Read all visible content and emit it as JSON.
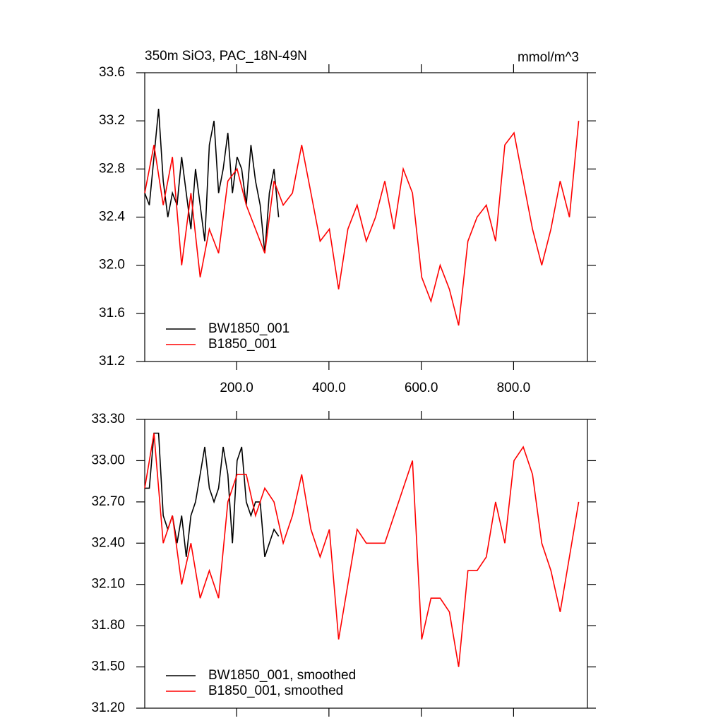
{
  "chart_data": [
    {
      "type": "line",
      "title": "350m SiO3, PAC_18N-49N",
      "units": "mmol/m^3",
      "xlim": [
        1,
        960
      ],
      "ylim": [
        31.2,
        33.6
      ],
      "xticks": [
        {
          "value": 200,
          "label": "200.0"
        },
        {
          "value": 400,
          "label": "400.0"
        },
        {
          "value": 600,
          "label": "600.0"
        },
        {
          "value": 800,
          "label": "800.0"
        }
      ],
      "yticks": [
        31.2,
        31.6,
        {
          "value": 32,
          "label": "32.0"
        },
        32.4,
        32.8,
        33.2,
        33.6
      ],
      "legend": "lower left",
      "series": [
        {
          "name": "BW1850_001",
          "color": "#000000",
          "x": [
            1,
            11,
            21,
            31,
            41,
            51,
            61,
            71,
            81,
            91,
            101,
            111,
            121,
            131,
            141,
            151,
            161,
            171,
            181,
            191,
            201,
            211,
            221,
            231,
            241,
            251,
            261,
            271,
            281,
            291
          ],
          "values": [
            32.6,
            32.5,
            32.9,
            33.3,
            32.7,
            32.4,
            32.6,
            32.5,
            32.9,
            32.6,
            32.3,
            32.8,
            32.5,
            32.2,
            33.0,
            33.2,
            32.6,
            32.8,
            33.1,
            32.6,
            32.9,
            32.8,
            32.5,
            33.0,
            32.7,
            32.5,
            32.1,
            32.6,
            32.8,
            32.4
          ]
        },
        {
          "name": "B1850_001",
          "color": "#ff0000",
          "x": [
            1,
            21,
            41,
            61,
            81,
            101,
            121,
            141,
            161,
            181,
            201,
            221,
            241,
            261,
            281,
            301,
            321,
            341,
            361,
            381,
            401,
            421,
            441,
            461,
            481,
            501,
            521,
            541,
            561,
            581,
            601,
            621,
            641,
            661,
            681,
            701,
            721,
            741,
            761,
            781,
            801,
            821,
            841,
            861,
            881,
            901,
            921,
            941
          ],
          "values": [
            32.6,
            33.0,
            32.5,
            32.9,
            32.0,
            32.6,
            31.9,
            32.3,
            32.1,
            32.7,
            32.8,
            32.5,
            32.3,
            32.1,
            32.7,
            32.5,
            32.6,
            33.0,
            32.6,
            32.2,
            32.3,
            31.8,
            32.3,
            32.5,
            32.2,
            32.4,
            32.7,
            32.3,
            32.8,
            32.6,
            31.9,
            31.7,
            32.0,
            31.8,
            31.5,
            32.2,
            32.4,
            32.5,
            32.2,
            33.0,
            33.1,
            32.7,
            32.3,
            32.0,
            32.3,
            32.7,
            32.4,
            33.2
          ]
        }
      ]
    },
    {
      "type": "line",
      "xlim": [
        1,
        960
      ],
      "ylim": [
        31.2,
        33.3
      ],
      "xticks": [
        200,
        400,
        600,
        800
      ],
      "yticks": [
        {
          "value": 31.2,
          "label": "31.20"
        },
        {
          "value": 31.5,
          "label": "31.50"
        },
        {
          "value": 31.8,
          "label": "31.80"
        },
        {
          "value": 32.1,
          "label": "32.10"
        },
        {
          "value": 32.4,
          "label": "32.40"
        },
        {
          "value": 32.7,
          "label": "32.70"
        },
        {
          "value": 33,
          "label": "33.00"
        },
        {
          "value": 33.3,
          "label": "33.30"
        }
      ],
      "legend": "lower left",
      "series": [
        {
          "name": "BW1850_001, smoothed",
          "color": "#000000",
          "x": [
            1,
            11,
            21,
            31,
            41,
            51,
            61,
            71,
            81,
            91,
            101,
            111,
            121,
            131,
            141,
            151,
            161,
            171,
            181,
            191,
            201,
            211,
            221,
            231,
            241,
            251,
            261,
            271,
            281,
            291
          ],
          "values": [
            32.8,
            32.8,
            33.2,
            33.2,
            32.6,
            32.5,
            32.6,
            32.4,
            32.6,
            32.3,
            32.6,
            32.7,
            32.9,
            33.1,
            32.8,
            32.7,
            32.8,
            33.1,
            32.9,
            32.4,
            33.0,
            33.1,
            32.7,
            32.6,
            32.7,
            32.7,
            32.3,
            32.4,
            32.5,
            32.45
          ]
        },
        {
          "name": "B1850_001, smoothed",
          "color": "#ff0000",
          "x": [
            1,
            21,
            41,
            61,
            81,
            101,
            121,
            141,
            161,
            181,
            201,
            221,
            241,
            261,
            281,
            301,
            321,
            341,
            361,
            381,
            401,
            421,
            441,
            461,
            481,
            501,
            521,
            541,
            561,
            581,
            601,
            621,
            641,
            661,
            681,
            701,
            721,
            741,
            761,
            781,
            801,
            821,
            841,
            861,
            881,
            901,
            921,
            941
          ],
          "values": [
            32.8,
            33.2,
            32.4,
            32.6,
            32.1,
            32.4,
            32.0,
            32.2,
            32.0,
            32.7,
            32.9,
            32.9,
            32.6,
            32.8,
            32.7,
            32.4,
            32.6,
            32.9,
            32.5,
            32.3,
            32.5,
            31.7,
            32.1,
            32.5,
            32.4,
            32.4,
            32.4,
            32.6,
            32.8,
            33.0,
            31.7,
            32.0,
            32.0,
            31.9,
            31.5,
            32.2,
            32.2,
            32.3,
            32.7,
            32.4,
            33.0,
            33.1,
            32.9,
            32.4,
            32.2,
            31.9,
            32.3,
            32.7
          ]
        }
      ]
    }
  ]
}
